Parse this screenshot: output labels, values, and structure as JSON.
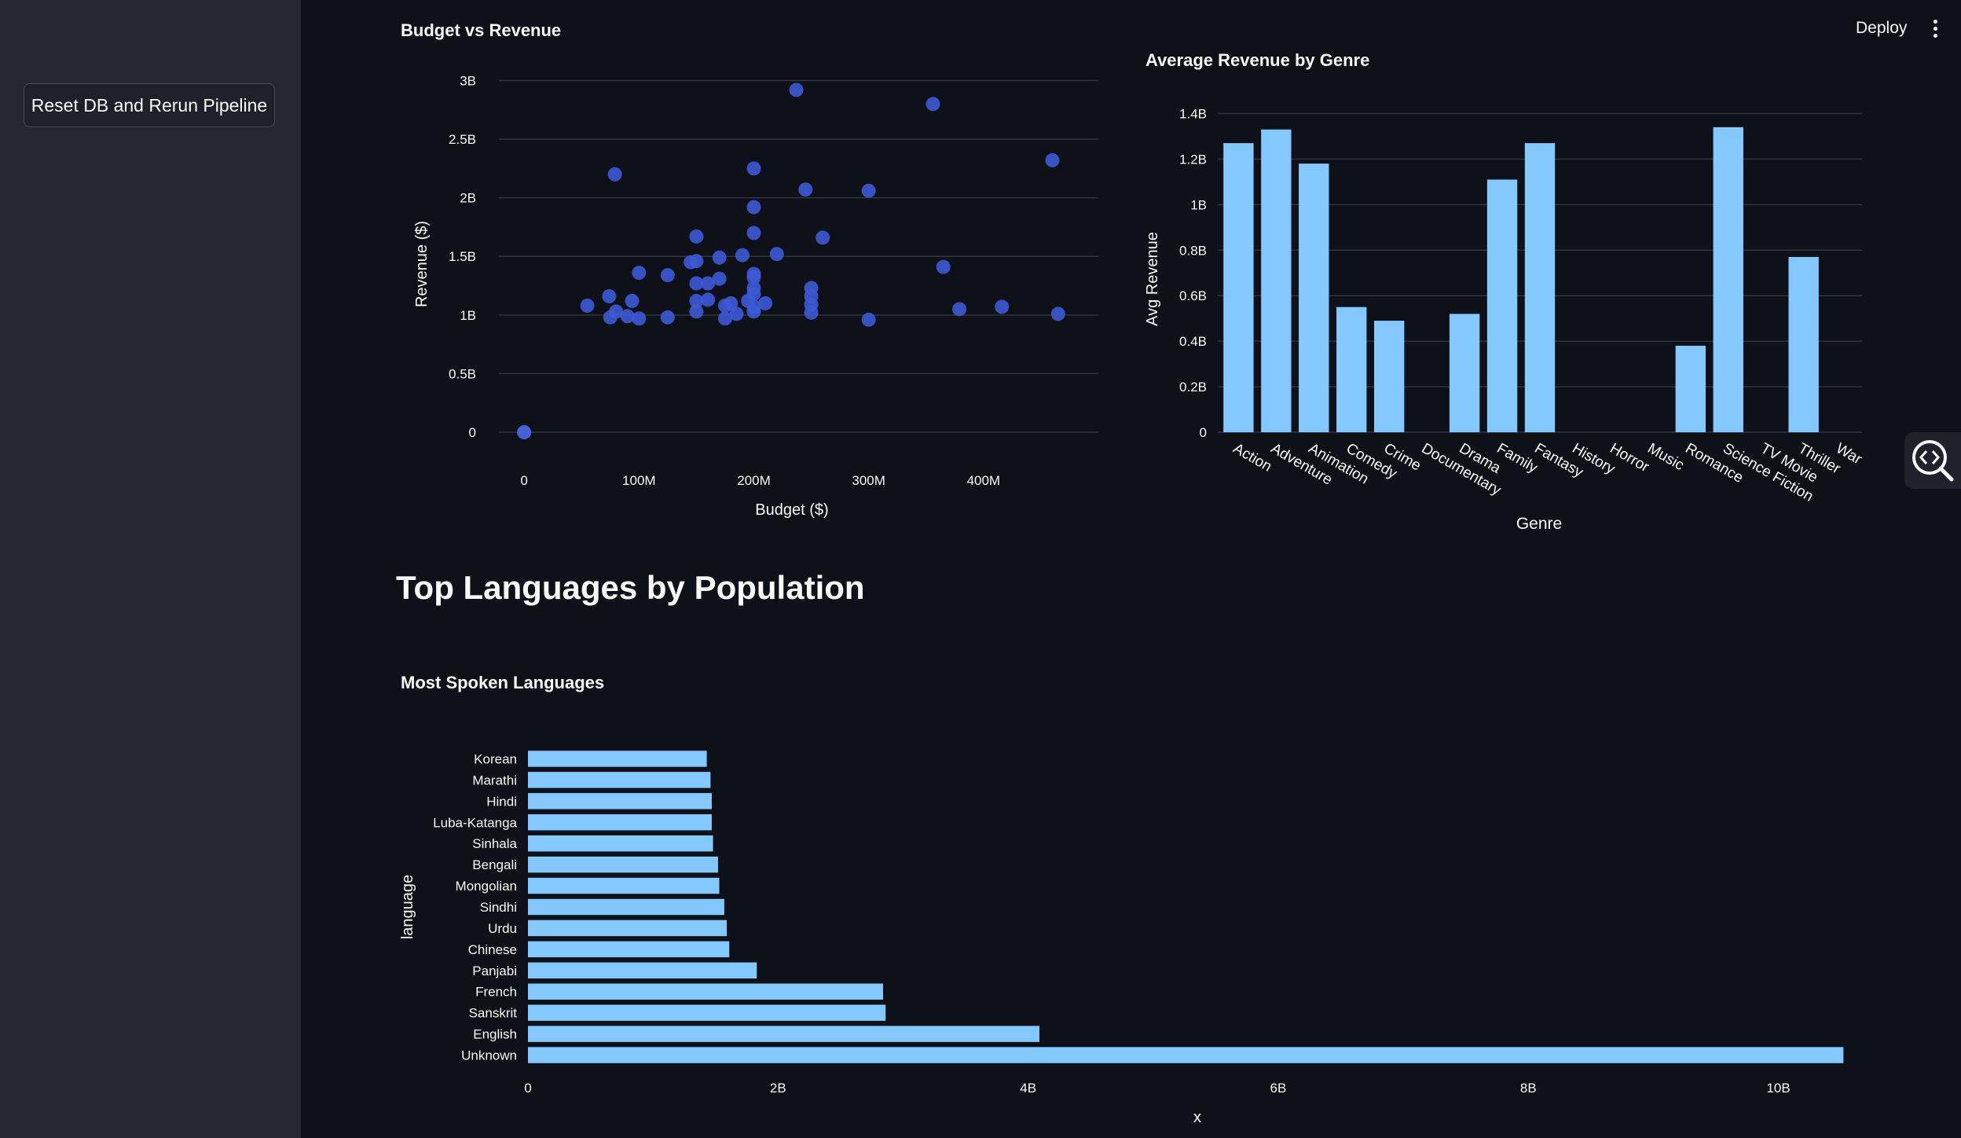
{
  "sidebar": {
    "reset_button_label": "Reset DB and Rerun Pipeline"
  },
  "toolbar": {
    "deploy_label": "Deploy"
  },
  "section_heading": "Top Languages by Population",
  "colors": {
    "background": "#0e1117",
    "sidebar": "#262730",
    "scatter_point": "#3d5ad6",
    "bar": "#83c9ff",
    "grid": "#31333f"
  },
  "icons": {
    "menu": "vertical-ellipsis-icon",
    "inspect": "code-magnifier-icon"
  },
  "chart_data": [
    {
      "id": "budget_vs_revenue",
      "type": "scatter",
      "title": "Budget vs Revenue",
      "xlabel": "Budget ($)",
      "ylabel": "Revenue ($)",
      "xlim": [
        -22,
        500
      ],
      "ylim": [
        0,
        3.05
      ],
      "x_ticks": [
        0,
        100,
        200,
        300,
        400
      ],
      "x_tick_labels": [
        "0",
        "100M",
        "200M",
        "300M",
        "400M"
      ],
      "y_ticks": [
        0,
        0.5,
        1,
        1.5,
        2,
        2.5,
        3
      ],
      "y_tick_labels": [
        "0",
        "0.5B",
        "1B",
        "1.5B",
        "2B",
        "2.5B",
        "3B"
      ],
      "grid": true,
      "points": [
        {
          "x": 0,
          "y": 0.0,
          "highlight": true
        },
        {
          "x": 55,
          "y": 1.08
        },
        {
          "x": 74,
          "y": 1.16
        },
        {
          "x": 75,
          "y": 0.98
        },
        {
          "x": 80,
          "y": 1.03
        },
        {
          "x": 79,
          "y": 2.2
        },
        {
          "x": 90,
          "y": 0.99
        },
        {
          "x": 94,
          "y": 1.12
        },
        {
          "x": 100,
          "y": 1.36
        },
        {
          "x": 100,
          "y": 0.97
        },
        {
          "x": 125,
          "y": 1.34
        },
        {
          "x": 125,
          "y": 0.98
        },
        {
          "x": 145,
          "y": 1.45
        },
        {
          "x": 150,
          "y": 1.46
        },
        {
          "x": 150,
          "y": 1.67
        },
        {
          "x": 150,
          "y": 1.27
        },
        {
          "x": 150,
          "y": 1.12
        },
        {
          "x": 150,
          "y": 1.03
        },
        {
          "x": 160,
          "y": 1.27
        },
        {
          "x": 160,
          "y": 1.13
        },
        {
          "x": 170,
          "y": 1.31
        },
        {
          "x": 170,
          "y": 1.49
        },
        {
          "x": 175,
          "y": 1.08
        },
        {
          "x": 175,
          "y": 0.97
        },
        {
          "x": 180,
          "y": 1.1
        },
        {
          "x": 185,
          "y": 1.01
        },
        {
          "x": 190,
          "y": 1.51
        },
        {
          "x": 195,
          "y": 1.12
        },
        {
          "x": 200,
          "y": 2.25
        },
        {
          "x": 200,
          "y": 1.92
        },
        {
          "x": 200,
          "y": 1.7
        },
        {
          "x": 200,
          "y": 1.35
        },
        {
          "x": 200,
          "y": 1.32
        },
        {
          "x": 200,
          "y": 1.23
        },
        {
          "x": 200,
          "y": 1.18
        },
        {
          "x": 200,
          "y": 1.07
        },
        {
          "x": 200,
          "y": 1.03
        },
        {
          "x": 210,
          "y": 1.1
        },
        {
          "x": 220,
          "y": 1.52
        },
        {
          "x": 237,
          "y": 2.92
        },
        {
          "x": 245,
          "y": 2.07
        },
        {
          "x": 250,
          "y": 1.23
        },
        {
          "x": 250,
          "y": 1.16
        },
        {
          "x": 250,
          "y": 1.09
        },
        {
          "x": 250,
          "y": 1.02
        },
        {
          "x": 260,
          "y": 1.66
        },
        {
          "x": 300,
          "y": 2.06
        },
        {
          "x": 300,
          "y": 0.96
        },
        {
          "x": 356,
          "y": 2.8
        },
        {
          "x": 365,
          "y": 1.41
        },
        {
          "x": 379,
          "y": 1.05
        },
        {
          "x": 416,
          "y": 1.07
        },
        {
          "x": 460,
          "y": 2.32
        },
        {
          "x": 465,
          "y": 1.01
        }
      ]
    },
    {
      "id": "avg_revenue_by_genre",
      "type": "bar",
      "title": "Average Revenue by Genre",
      "xlabel": "Genre",
      "ylabel": "Avg Revenue",
      "ylim": [
        0,
        1.45
      ],
      "y_ticks": [
        0,
        0.2,
        0.4,
        0.6,
        0.8,
        1,
        1.2,
        1.4
      ],
      "y_tick_labels": [
        "0",
        "0.2B",
        "0.4B",
        "0.6B",
        "0.8B",
        "1B",
        "1.2B",
        "1.4B"
      ],
      "grid": true,
      "categories": [
        "Action",
        "Adventure",
        "Animation",
        "Comedy",
        "Crime",
        "Documentary",
        "Drama",
        "Family",
        "Fantasy",
        "History",
        "Horror",
        "Music",
        "Romance",
        "Science Fiction",
        "TV Movie",
        "Thriller",
        "War"
      ],
      "values": [
        1.27,
        1.33,
        1.18,
        0.55,
        0.49,
        0,
        0.52,
        1.11,
        1.27,
        0,
        0,
        0,
        0.38,
        1.34,
        0,
        0.77,
        0
      ]
    },
    {
      "id": "most_spoken_languages",
      "type": "bar",
      "orientation": "horizontal",
      "title": "Most Spoken Languages",
      "xlabel": "x",
      "ylabel": "language",
      "xlim": [
        0,
        10.7
      ],
      "x_ticks": [
        0,
        2,
        4,
        6,
        8,
        10
      ],
      "x_tick_labels": [
        "0",
        "2B",
        "4B",
        "6B",
        "8B",
        "10B"
      ],
      "grid": false,
      "categories": [
        "Korean",
        "Marathi",
        "Hindi",
        "Luba-Katanga",
        "Sinhala",
        "Bengali",
        "Mongolian",
        "Sindhi",
        "Urdu",
        "Chinese",
        "Panjabi",
        "French",
        "Sanskrit",
        "English",
        "Unknown"
      ],
      "values": [
        1.43,
        1.46,
        1.47,
        1.47,
        1.48,
        1.52,
        1.53,
        1.57,
        1.59,
        1.61,
        1.83,
        2.84,
        2.86,
        4.09,
        10.52
      ]
    }
  ]
}
